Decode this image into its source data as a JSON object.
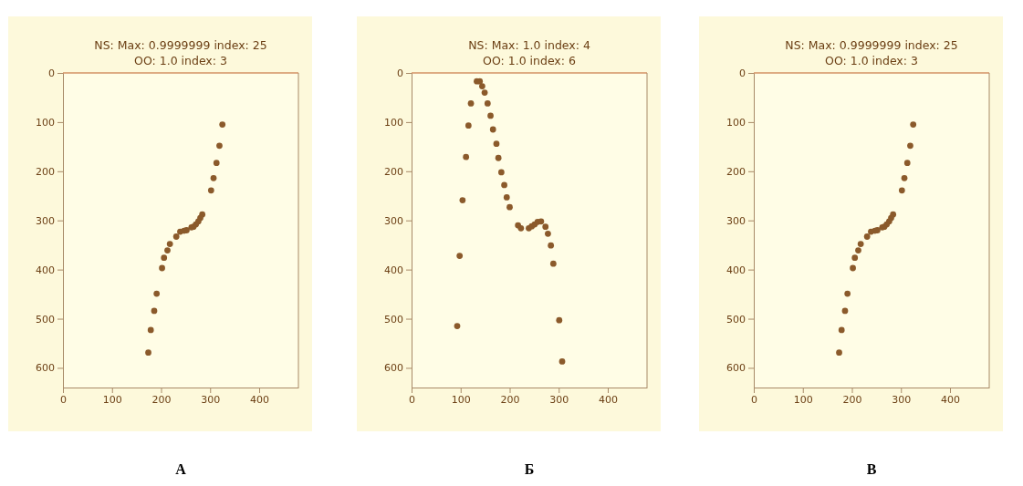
{
  "chart_data": [
    {
      "type": "scatter",
      "title": "NS: Max: 0.9999999 index: 25",
      "subtitle": "OO: 1.0 index: 3",
      "annotations": [
        "А"
      ],
      "marker": "circle",
      "grid": false,
      "xlim": [
        0,
        480
      ],
      "ylim": [
        640,
        0
      ],
      "xticks": [
        0,
        100,
        200,
        300,
        400
      ],
      "yticks": [
        0,
        100,
        200,
        300,
        400,
        500,
        600
      ],
      "x": [
        325,
        319,
        313,
        307,
        302,
        284,
        280,
        276,
        271,
        266,
        262,
        252,
        247,
        239,
        231,
        218,
        213,
        206,
        202,
        191,
        186,
        179,
        174
      ],
      "series": [
        {
          "color": "#8b5a2b",
          "values": [
            105,
            148,
            183,
            214,
            239,
            288,
            295,
            302,
            308,
            313,
            314,
            320,
            321,
            323,
            333,
            348,
            361,
            376,
            397,
            449,
            484,
            523,
            569
          ]
        }
      ]
    },
    {
      "type": "scatter",
      "title": "NS: Max: 1.0 index: 4",
      "subtitle": "OO: 1.0 index: 6",
      "annotations": [
        "Б"
      ],
      "marker": "circle",
      "grid": false,
      "xlim": [
        0,
        480
      ],
      "ylim": [
        640,
        0
      ],
      "xticks": [
        0,
        100,
        200,
        300,
        400
      ],
      "yticks": [
        0,
        100,
        200,
        300,
        400,
        500,
        600
      ],
      "x": [
        133,
        139,
        144,
        149,
        121,
        155,
        161,
        166,
        116,
        173,
        111,
        177,
        183,
        189,
        194,
        104,
        200,
        217,
        223,
        239,
        245,
        251,
        257,
        264,
        273,
        278,
        284,
        289,
        98,
        301,
        93,
        307
      ],
      "series": [
        {
          "color": "#8b5a2b",
          "values": [
            17,
            17,
            27,
            40,
            62,
            62,
            87,
            115,
            107,
            144,
            171,
            173,
            202,
            228,
            253,
            259,
            273,
            310,
            316,
            316,
            312,
            308,
            303,
            302,
            313,
            327,
            351,
            388,
            372,
            503,
            515,
            587
          ]
        }
      ]
    },
    {
      "type": "scatter",
      "title": "NS: Max: 0.9999999 index: 25",
      "subtitle": "OO: 1.0 index: 3",
      "annotations": [
        "В"
      ],
      "marker": "circle",
      "grid": false,
      "xlim": [
        0,
        480
      ],
      "ylim": [
        640,
        0
      ],
      "xticks": [
        0,
        100,
        200,
        300,
        400
      ],
      "yticks": [
        0,
        100,
        200,
        300,
        400,
        500,
        600
      ],
      "x": [
        325,
        319,
        313,
        307,
        302,
        284,
        280,
        276,
        271,
        266,
        262,
        252,
        247,
        239,
        231,
        218,
        213,
        206,
        202,
        191,
        186,
        179,
        174
      ],
      "series": [
        {
          "color": "#8b5a2b",
          "values": [
            105,
            148,
            183,
            214,
            239,
            288,
            295,
            302,
            308,
            313,
            314,
            320,
            321,
            323,
            333,
            348,
            361,
            376,
            397,
            449,
            484,
            523,
            569
          ]
        }
      ]
    }
  ]
}
